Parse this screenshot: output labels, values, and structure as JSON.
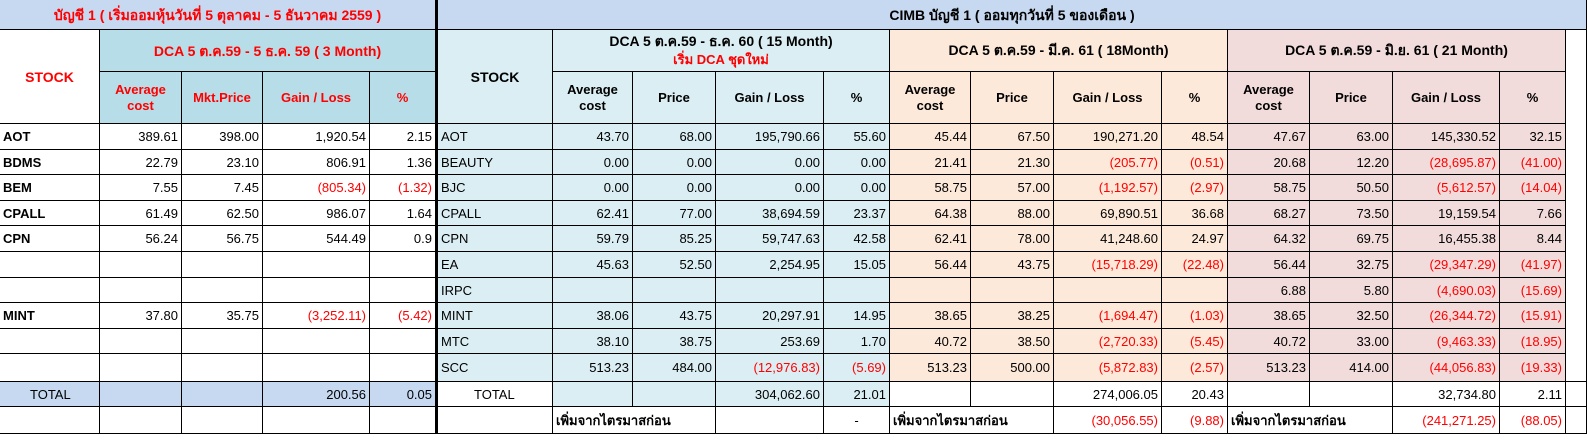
{
  "left": {
    "title": "บัญชี 1  ( เริ่มออมหุ้นวันที่ 5 ตุลาคม - 5 ธันวาคม 2559  )",
    "stock_label": "STOCK",
    "dca_label": "DCA 5 ต.ค.59 -  5 ธ.ค. 59 ( 3 Month)",
    "col_headers": [
      "Average cost",
      "Mkt.Price",
      "Gain / Loss",
      "%"
    ],
    "rows": [
      {
        "stock": "AOT",
        "avg": "389.61",
        "price": "398.00",
        "gain": "1,920.54",
        "pct": "2.15"
      },
      {
        "stock": "BDMS",
        "avg": "22.79",
        "price": "23.10",
        "gain": "806.91",
        "pct": "1.36"
      },
      {
        "stock": "BEM",
        "avg": "7.55",
        "price": "7.45",
        "gain": "(805.34)",
        "pct": "(1.32)"
      },
      {
        "stock": "CPALL",
        "avg": "61.49",
        "price": "62.50",
        "gain": "986.07",
        "pct": "1.64"
      },
      {
        "stock": "CPN",
        "avg": "56.24",
        "price": "56.75",
        "gain": "544.49",
        "pct": "0.9"
      },
      {
        "stock": "",
        "avg": "",
        "price": "",
        "gain": "",
        "pct": ""
      },
      {
        "stock": "",
        "avg": "",
        "price": "",
        "gain": "",
        "pct": ""
      },
      {
        "stock": "MINT",
        "avg": "37.80",
        "price": "35.75",
        "gain": "(3,252.11)",
        "pct": "(5.42)"
      },
      {
        "stock": "",
        "avg": "",
        "price": "",
        "gain": "",
        "pct": ""
      },
      {
        "stock": "",
        "avg": "",
        "price": "",
        "gain": "",
        "pct": ""
      }
    ],
    "total": {
      "label": "TOTAL",
      "gain": "200.56",
      "pct": "0.05"
    }
  },
  "right": {
    "title": "CIMB บัญชี 1  ( ออมทุกวันที่ 5 ของเดือน )",
    "stock_label": "STOCK",
    "groups": [
      {
        "label": "DCA 5 ต.ค.59 -  ธ.ค. 60 ( 15 Month)",
        "sublabel": "เริ่ม DCA ชุดใหม่"
      },
      {
        "label": "DCA 5 ต.ค.59 -  มี.ค. 61 ( 18Month)",
        "sublabel": ""
      },
      {
        "label": "DCA 5 ต.ค.59 -  มิ.ย. 61 ( 21 Month)",
        "sublabel": ""
      }
    ],
    "col_headers": [
      "Average cost",
      "Price",
      "Gain / Loss",
      "%"
    ],
    "stocks": [
      "AOT",
      "BEAUTY",
      "BJC",
      "CPALL",
      "CPN",
      "EA",
      "IRPC",
      "MINT",
      "MTC",
      "SCC"
    ],
    "g1": [
      {
        "avg": "43.70",
        "price": "68.00",
        "gain": "195,790.66",
        "pct": "55.60"
      },
      {
        "avg": "0.00",
        "price": "0.00",
        "gain": "0.00",
        "pct": "0.00"
      },
      {
        "avg": "0.00",
        "price": "0.00",
        "gain": "0.00",
        "pct": "0.00"
      },
      {
        "avg": "62.41",
        "price": "77.00",
        "gain": "38,694.59",
        "pct": "23.37"
      },
      {
        "avg": "59.79",
        "price": "85.25",
        "gain": "59,747.63",
        "pct": "42.58"
      },
      {
        "avg": "45.63",
        "price": "52.50",
        "gain": "2,254.95",
        "pct": "15.05"
      },
      {
        "avg": "",
        "price": "",
        "gain": "",
        "pct": ""
      },
      {
        "avg": "38.06",
        "price": "43.75",
        "gain": "20,297.91",
        "pct": "14.95"
      },
      {
        "avg": "38.10",
        "price": "38.75",
        "gain": "253.69",
        "pct": "1.70"
      },
      {
        "avg": "513.23",
        "price": "484.00",
        "gain": "(12,976.83)",
        "pct": "(5.69)"
      }
    ],
    "g2": [
      {
        "avg": "45.44",
        "price": "67.50",
        "gain": "190,271.20",
        "pct": "48.54"
      },
      {
        "avg": "21.41",
        "price": "21.30",
        "gain": "(205.77)",
        "pct": "(0.51)"
      },
      {
        "avg": "58.75",
        "price": "57.00",
        "gain": "(1,192.57)",
        "pct": "(2.97)"
      },
      {
        "avg": "64.38",
        "price": "88.00",
        "gain": "69,890.51",
        "pct": "36.68"
      },
      {
        "avg": "62.41",
        "price": "78.00",
        "gain": "41,248.60",
        "pct": "24.97"
      },
      {
        "avg": "56.44",
        "price": "43.75",
        "gain": "(15,718.29)",
        "pct": "(22.48)"
      },
      {
        "avg": "",
        "price": "",
        "gain": "",
        "pct": ""
      },
      {
        "avg": "38.65",
        "price": "38.25",
        "gain": "(1,694.47)",
        "pct": "(1.03)"
      },
      {
        "avg": "40.72",
        "price": "38.50",
        "gain": "(2,720.33)",
        "pct": "(5.45)"
      },
      {
        "avg": "513.23",
        "price": "500.00",
        "gain": "(5,872.83)",
        "pct": "(2.57)"
      }
    ],
    "g3": [
      {
        "avg": "47.67",
        "price": "63.00",
        "gain": "145,330.52",
        "pct": "32.15"
      },
      {
        "avg": "20.68",
        "price": "12.20",
        "gain": "(28,695.87)",
        "pct": "(41.00)"
      },
      {
        "avg": "58.75",
        "price": "50.50",
        "gain": "(5,612.57)",
        "pct": "(14.04)"
      },
      {
        "avg": "68.27",
        "price": "73.50",
        "gain": "19,159.54",
        "pct": "7.66"
      },
      {
        "avg": "64.32",
        "price": "69.75",
        "gain": "16,455.38",
        "pct": "8.44"
      },
      {
        "avg": "56.44",
        "price": "32.75",
        "gain": "(29,347.29)",
        "pct": "(41.97)"
      },
      {
        "avg": "6.88",
        "price": "5.80",
        "gain": "(4,690.03)",
        "pct": "(15.69)"
      },
      {
        "avg": "38.65",
        "price": "32.50",
        "gain": "(26,344.72)",
        "pct": "(15.91)"
      },
      {
        "avg": "40.72",
        "price": "33.00",
        "gain": "(9,463.33)",
        "pct": "(18.95)"
      },
      {
        "avg": "513.23",
        "price": "414.00",
        "gain": "(44,056.83)",
        "pct": "(19.33)"
      }
    ],
    "total_label": "TOTAL",
    "totals": [
      {
        "gain": "304,062.60",
        "pct": "21.01"
      },
      {
        "gain": "274,006.05",
        "pct": "20.43"
      },
      {
        "gain": "32,734.80",
        "pct": "2.11"
      }
    ],
    "extra_label": "เพิ่มจากไตรมาสก่อน",
    "extras": [
      {
        "gain": "",
        "pct": "-"
      },
      {
        "gain": "(30,056.55)",
        "pct": "(9.88)"
      },
      {
        "gain": "(241,271.25)",
        "pct": "(88.05)"
      }
    ]
  }
}
